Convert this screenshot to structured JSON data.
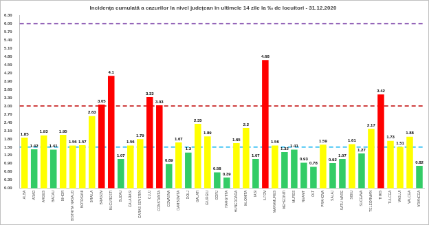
{
  "chart_data": {
    "type": "bar",
    "title": "Incidența cumulată a cazurilor la nivel județean în ultimele 14 zile la ‰ de locuitori - 31.12.2020",
    "categories": [
      "ALBA",
      "ARAD",
      "ARGES",
      "BACAU",
      "BIHOR",
      "BISTRITA NASAUD",
      "BOTOSANI",
      "BRAILA",
      "BRASOV",
      "BUCURESTI",
      "BUZAU",
      "CALARASI",
      "CARAS SEVERIN",
      "CLUJ",
      "CONSTANTA",
      "COVASNA",
      "DAMBOVITA",
      "DOLJ",
      "GALATI",
      "GIURGIU",
      "GORJ",
      "HARGHITA",
      "HUNEDOARA",
      "IALOMITA",
      "IASI",
      "ILFOV",
      "MARAMURES",
      "MEHEDINTI",
      "MURES",
      "NEAMT",
      "OLT",
      "PRAHOVA",
      "SALAJ",
      "SATU MARE",
      "SIBIU",
      "SUCEAVA",
      "TELEORMAN",
      "TIMIS",
      "TULCEA",
      "VASLUI",
      "VALCEA",
      "VRANCEA"
    ],
    "values": [
      1.85,
      1.42,
      1.93,
      1.41,
      1.95,
      1.56,
      1.57,
      2.63,
      3.05,
      4.1,
      1.07,
      1.56,
      1.79,
      3.33,
      3.03,
      0.89,
      1.67,
      1.3,
      2.35,
      1.89,
      0.58,
      0.39,
      1.65,
      2.2,
      1.07,
      4.68,
      1.56,
      1.32,
      1.41,
      0.93,
      0.78,
      1.59,
      0.92,
      1.07,
      1.61,
      1.27,
      2.17,
      3.42,
      1.73,
      1.51,
      1.88,
      0.82
    ],
    "colors": [
      "#ffff00",
      "#33cc66",
      "#ffff00",
      "#33cc66",
      "#ffff00",
      "#ffff00",
      "#ffff00",
      "#ffff00",
      "#ff0000",
      "#ff0000",
      "#33cc66",
      "#ffff00",
      "#ffff00",
      "#ff0000",
      "#ff0000",
      "#33cc66",
      "#ffff00",
      "#33cc66",
      "#ffff00",
      "#ffff00",
      "#33cc66",
      "#33cc66",
      "#ffff00",
      "#ffff00",
      "#33cc66",
      "#ff0000",
      "#ffff00",
      "#33cc66",
      "#33cc66",
      "#33cc66",
      "#33cc66",
      "#ffff00",
      "#33cc66",
      "#33cc66",
      "#ffff00",
      "#33cc66",
      "#ffff00",
      "#ff0000",
      "#ffff00",
      "#ffff00",
      "#ffff00",
      "#33cc66"
    ],
    "ylim": [
      0,
      6.3
    ],
    "yticks": [
      {
        "value": 0,
        "label": "0.00"
      },
      {
        "value": 0.3,
        "label": "0.30"
      },
      {
        "value": 0.6,
        "label": "0.60"
      },
      {
        "value": 0.9,
        "label": "0.90"
      },
      {
        "value": 1.2,
        "label": "1.20"
      },
      {
        "value": 1.5,
        "label": "1.50"
      },
      {
        "value": 1.8,
        "label": "1.80"
      },
      {
        "value": 2.1,
        "label": "2.10"
      },
      {
        "value": 2.4,
        "label": "2.40"
      },
      {
        "value": 2.7,
        "label": "2.70"
      },
      {
        "value": 3,
        "label": "3.00"
      },
      {
        "value": 3.3,
        "label": "3.30"
      },
      {
        "value": 3.6,
        "label": "3.60"
      },
      {
        "value": 3.9,
        "label": "3.90"
      },
      {
        "value": 4.2,
        "label": "4.20"
      },
      {
        "value": 4.5,
        "label": "4.50"
      },
      {
        "value": 4.8,
        "label": "4.80"
      },
      {
        "value": 5.1,
        "label": "5.10"
      },
      {
        "value": 5.4,
        "label": "5.40"
      },
      {
        "value": 5.7,
        "label": "5.70"
      },
      {
        "value": 6,
        "label": "6.00"
      },
      {
        "value": 6.3,
        "label": "6.30"
      }
    ],
    "reference_lines": [
      {
        "value": 6,
        "color": "#7030a0"
      },
      {
        "value": 3,
        "color": "#c00000"
      },
      {
        "value": 1.5,
        "color": "#00b0f0"
      }
    ],
    "grid": false,
    "data_labels": true
  }
}
